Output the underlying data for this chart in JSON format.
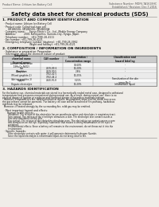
{
  "bg_color": "#f0ede8",
  "header_left": "Product Name: Lithium Ion Battery Cell",
  "header_right_line1": "Substance Number: MDF6-TA1618HC",
  "header_right_line2": "Established / Revision: Dec.7,2016",
  "title": "Safety data sheet for chemical products (SDS)",
  "section1_title": "1. PRODUCT AND COMPANY IDENTIFICATION",
  "section1_lines": [
    "  · Product name: Lithium Ion Battery Cell",
    "  · Product code: Cylindrical-type cell",
    "       GR18650U, GR18650U, GR18650A",
    "  · Company name:     Sanyo Electric Co., Ltd., Mobile Energy Company",
    "  · Address:          2001 Kamiyashiro, Sumoto-City, Hyogo, Japan",
    "  · Telephone number:   +81-(799)-26-4111",
    "  · Fax number: +81-799-26-4121",
    "  · Emergency telephone number (daytime): +81-799-26-3962",
    "                                  (Night and holiday): +81-799-26-4121"
  ],
  "section2_title": "2. COMPOSITION / INFORMATION ON INGREDIENTS",
  "section2_intro": "  · Substance or preparation: Preparation",
  "section2_sub": "  · Information about the chemical nature of product:",
  "table_col_names": [
    "Component\nchemical name\nSeveral name",
    "CAS number",
    "Concentration /\nConcentration range",
    "Classification and\nhazard labeling"
  ],
  "table_rows": [
    [
      "Lithium cobalt oxide\n(LiMn-Co-NiO2)",
      "-",
      "30-60%",
      "-"
    ],
    [
      "Iron",
      "7439-89-6",
      "10-20%",
      "-"
    ],
    [
      "Aluminium",
      "7429-90-5",
      "2-8%",
      "-"
    ],
    [
      "Graphite\n(Mixed graphite-1)\n(Active graphite-1)",
      "7782-42-5\n7782-44-2",
      "10-25%",
      "-"
    ],
    [
      "Copper",
      "7440-50-8",
      "5-15%",
      "Sensitization of the skin\ngroup No.2"
    ],
    [
      "Organic electrolyte",
      "-",
      "10-20%",
      "Inflammable liquid"
    ]
  ],
  "section3_title": "3. HAZARDS IDENTIFICATION",
  "section3_lines": [
    "For the battery can, chemical materials are stored in a hermetically sealed metal case, designed to withstand",
    "temperatures and pressures-encountered during normal use. As a result, during normal use, there is no",
    "physical danger of ignition or explosion and thermical danger of hazardous materials leakage.",
    "  However, if exposed to a fire, added mechanical shocks, decomposed, when electric shock may occur,",
    "the gas release cannot be operated. The battery cell case will be breached of fire-pathway, hazardous",
    "materials may be released.",
    "  Moreover, if heated strongly by the surrounding fire, solid gas may be emitted."
  ],
  "bullet1_title": "  · Most important hazard and effects:",
  "bullet1a_title": "      Human health effects:",
  "bullet1a_lines": [
    "        Inhalation: The release of the electrolyte has an anesthesia action and stimulates in respiratory tract.",
    "        Skin contact: The release of the electrolyte stimulates a skin. The electrolyte skin contact causes a",
    "        sore and stimulation on the skin.",
    "        Eye contact: The release of the electrolyte stimulates eyes. The electrolyte eye contact causes a sore",
    "        and stimulation on the eye. Especially, substance that causes a strong inflammation of the eyes is",
    "        contained.",
    "        Environmental effects: Since a battery cell remains in the environment, do not throw out it into the",
    "        environment."
  ],
  "bullet2_title": "  · Specific hazards:",
  "bullet2_lines": [
    "        If the electrolyte contacts with water, it will generate detrimental hydrogen fluoride.",
    "        Since the liquid electrolyte is inflammable liquid, do not bring close to fire."
  ]
}
